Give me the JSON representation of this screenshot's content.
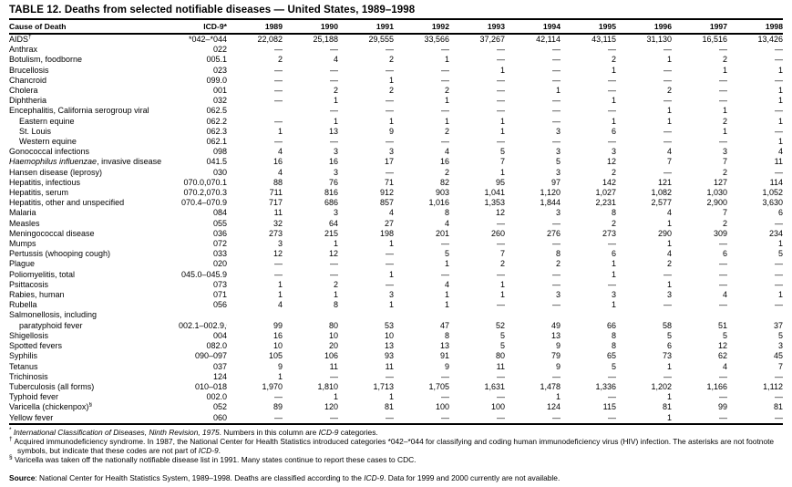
{
  "title": "TABLE 12. Deaths from selected notifiable diseases — United States, 1989–1998",
  "table": {
    "columns": [
      "Cause of Death",
      "ICD-9*",
      "1989",
      "1990",
      "1991",
      "1992",
      "1993",
      "1994",
      "1995",
      "1996",
      "1997",
      "1998"
    ],
    "rows": [
      {
        "label": "AIDS",
        "sup": "†",
        "icd": "*042–*044",
        "indent": false,
        "values": [
          "22,082",
          "25,188",
          "29,555",
          "33,566",
          "37,267",
          "42,114",
          "43,115",
          "31,130",
          "16,516",
          "13,426"
        ]
      },
      {
        "label": "Anthrax",
        "icd": "022",
        "indent": false,
        "values": [
          "—",
          "—",
          "—",
          "—",
          "—",
          "—",
          "—",
          "—",
          "—",
          "—"
        ]
      },
      {
        "label": "Botulism, foodborne",
        "icd": "005.1",
        "indent": false,
        "values": [
          "2",
          "4",
          "2",
          "1",
          "—",
          "—",
          "2",
          "1",
          "2",
          "—"
        ]
      },
      {
        "label": "Brucellosis",
        "icd": "023",
        "indent": false,
        "values": [
          "—",
          "—",
          "—",
          "—",
          "1",
          "—",
          "1",
          "—",
          "1",
          "1"
        ]
      },
      {
        "label": "Chancroid",
        "icd": "099.0",
        "indent": false,
        "values": [
          "—",
          "—",
          "1",
          "—",
          "—",
          "—",
          "—",
          "—",
          "—",
          "—"
        ]
      },
      {
        "label": "Cholera",
        "icd": "001",
        "indent": false,
        "values": [
          "—",
          "2",
          "2",
          "2",
          "—",
          "1",
          "—",
          "2",
          "—",
          "1"
        ]
      },
      {
        "label": "Diphtheria",
        "icd": "032",
        "indent": false,
        "values": [
          "—",
          "1",
          "—",
          "1",
          "—",
          "—",
          "1",
          "—",
          "—",
          "1"
        ]
      },
      {
        "label": "Encephalitis, California serogroup viral",
        "icd": "062.5",
        "indent": false,
        "values": [
          "",
          "—",
          "—",
          "—",
          "—",
          "—",
          "—",
          "1",
          "1",
          "—"
        ]
      },
      {
        "label": "Eastern equine",
        "icd": "062.2",
        "indent": true,
        "values": [
          "—",
          "1",
          "1",
          "1",
          "1",
          "—",
          "1",
          "1",
          "2",
          "1"
        ]
      },
      {
        "label": "St. Louis",
        "icd": "062.3",
        "indent": true,
        "values": [
          "1",
          "13",
          "9",
          "2",
          "1",
          "3",
          "6",
          "—",
          "1",
          "—"
        ]
      },
      {
        "label": "Western equine",
        "icd": "062.1",
        "indent": true,
        "values": [
          "—",
          "—",
          "—",
          "—",
          "—",
          "—",
          "—",
          "—",
          "—",
          "1"
        ]
      },
      {
        "label": "Gonococcal infections",
        "icd": "098",
        "indent": false,
        "values": [
          "4",
          "3",
          "3",
          "4",
          "5",
          "3",
          "3",
          "4",
          "3",
          "4"
        ]
      },
      {
        "label_italic": "Haemophilus influenzae",
        "label": ", invasive disease",
        "icd": "041.5",
        "indent": false,
        "values": [
          "16",
          "16",
          "17",
          "16",
          "7",
          "5",
          "12",
          "7",
          "7",
          "11"
        ]
      },
      {
        "label": "Hansen disease (leprosy)",
        "icd": "030",
        "indent": false,
        "values": [
          "4",
          "3",
          "—",
          "2",
          "1",
          "3",
          "2",
          "—",
          "2",
          "—"
        ]
      },
      {
        "label": "Hepatitis, infectious",
        "icd": "070.0,070.1",
        "indent": false,
        "values": [
          "88",
          "76",
          "71",
          "82",
          "95",
          "97",
          "142",
          "121",
          "127",
          "114"
        ]
      },
      {
        "label": "Hepatitis, serum",
        "icd": "070.2,070.3",
        "indent": false,
        "values": [
          "711",
          "816",
          "912",
          "903",
          "1,041",
          "1,120",
          "1,027",
          "1,082",
          "1,030",
          "1,052"
        ]
      },
      {
        "label": "Hepatitis, other and unspecified",
        "icd": "070.4–070.9",
        "indent": false,
        "values": [
          "717",
          "686",
          "857",
          "1,016",
          "1,353",
          "1,844",
          "2,231",
          "2,577",
          "2,900",
          "3,630"
        ]
      },
      {
        "label": "Malaria",
        "icd": "084",
        "indent": false,
        "values": [
          "11",
          "3",
          "4",
          "8",
          "12",
          "3",
          "8",
          "4",
          "7",
          "6"
        ]
      },
      {
        "label": "Measles",
        "icd": "055",
        "indent": false,
        "values": [
          "32",
          "64",
          "27",
          "4",
          "—",
          "—",
          "2",
          "1",
          "2",
          "—"
        ]
      },
      {
        "label": "Meningococcal disease",
        "icd": "036",
        "indent": false,
        "values": [
          "273",
          "215",
          "198",
          "201",
          "260",
          "276",
          "273",
          "290",
          "309",
          "234"
        ]
      },
      {
        "label": "Mumps",
        "icd": "072",
        "indent": false,
        "values": [
          "3",
          "1",
          "1",
          "—",
          "—",
          "—",
          "—",
          "1",
          "—",
          "1"
        ]
      },
      {
        "label": "Pertussis (whooping cough)",
        "icd": "033",
        "indent": false,
        "values": [
          "12",
          "12",
          "—",
          "5",
          "7",
          "8",
          "6",
          "4",
          "6",
          "5"
        ]
      },
      {
        "label": "Plague",
        "icd": "020",
        "indent": false,
        "values": [
          "—",
          "—",
          "—",
          "1",
          "2",
          "2",
          "1",
          "2",
          "—",
          "—"
        ]
      },
      {
        "label": "Poliomyelitis, total",
        "icd": "045.0–045.9",
        "indent": false,
        "values": [
          "—",
          "—",
          "1",
          "—",
          "—",
          "—",
          "1",
          "—",
          "—",
          "—"
        ]
      },
      {
        "label": "Psittacosis",
        "icd": "073",
        "indent": false,
        "values": [
          "1",
          "2",
          "—",
          "4",
          "1",
          "—",
          "—",
          "1",
          "—",
          "—"
        ]
      },
      {
        "label": "Rabies, human",
        "icd": "071",
        "indent": false,
        "values": [
          "1",
          "1",
          "3",
          "1",
          "1",
          "3",
          "3",
          "3",
          "4",
          "1"
        ]
      },
      {
        "label": "Rubella",
        "icd": "056",
        "indent": false,
        "values": [
          "4",
          "8",
          "1",
          "1",
          "—",
          "—",
          "1",
          "—",
          "—",
          "—"
        ]
      },
      {
        "label": "Salmonellosis, including",
        "icd": "",
        "indent": false,
        "values": [
          "",
          "",
          "",
          "",
          "",
          "",
          "",
          "",
          "",
          ""
        ]
      },
      {
        "label": "paratyphoid fever",
        "icd": "002.1–002.9,003",
        "indent": true,
        "values": [
          "99",
          "80",
          "53",
          "47",
          "52",
          "49",
          "66",
          "58",
          "51",
          "37"
        ]
      },
      {
        "label": "Shigellosis",
        "icd": "004",
        "indent": false,
        "values": [
          "16",
          "10",
          "10",
          "8",
          "5",
          "13",
          "8",
          "5",
          "5",
          "5"
        ]
      },
      {
        "label": "Spotted fevers",
        "icd": "082.0",
        "indent": false,
        "values": [
          "10",
          "20",
          "13",
          "13",
          "5",
          "9",
          "8",
          "6",
          "12",
          "3"
        ]
      },
      {
        "label": "Syphilis",
        "icd": "090–097",
        "indent": false,
        "values": [
          "105",
          "106",
          "93",
          "91",
          "80",
          "79",
          "65",
          "73",
          "62",
          "45"
        ]
      },
      {
        "label": "Tetanus",
        "icd": "037",
        "indent": false,
        "values": [
          "9",
          "11",
          "11",
          "9",
          "11",
          "9",
          "5",
          "1",
          "4",
          "7"
        ]
      },
      {
        "label": "Trichinosis",
        "icd": "124",
        "indent": false,
        "values": [
          "1",
          "—",
          "—",
          "—",
          "—",
          "—",
          "—",
          "—",
          "—",
          "—"
        ]
      },
      {
        "label": "Tuberculosis (all forms)",
        "icd": "010–018",
        "indent": false,
        "values": [
          "1,970",
          "1,810",
          "1,713",
          "1,705",
          "1,631",
          "1,478",
          "1,336",
          "1,202",
          "1,166",
          "1,112"
        ]
      },
      {
        "label": "Typhoid fever",
        "icd": "002.0",
        "indent": false,
        "values": [
          "—",
          "1",
          "1",
          "—",
          "—",
          "1",
          "—",
          "1",
          "—",
          "—"
        ]
      },
      {
        "label": "Varicella (chickenpox)",
        "sup": "§",
        "icd": "052",
        "indent": false,
        "values": [
          "89",
          "120",
          "81",
          "100",
          "100",
          "124",
          "115",
          "81",
          "99",
          "81"
        ]
      },
      {
        "label": "Yellow fever",
        "icd": "060",
        "indent": false,
        "values": [
          "—",
          "—",
          "—",
          "—",
          "—",
          "—",
          "—",
          "1",
          "—",
          "—"
        ]
      }
    ]
  },
  "footnotes": [
    {
      "segments": [
        {
          "t": "*",
          "sup": true
        },
        {
          "t": " "
        },
        {
          "t": "International Classification of Diseases, Ninth Revision, 1975",
          "i": true
        },
        {
          "t": ". Numbers in this column are "
        },
        {
          "t": "ICD-9",
          "i": true
        },
        {
          "t": " categories."
        }
      ]
    },
    {
      "segments": [
        {
          "t": "†",
          "sup": true
        },
        {
          "t": " Acquired immunodeficiency syndrome.  In 1987, the National Center for Health Statistics introduced categories *042–*044 for classifying and coding human immunodeficiency virus (HIV) infection. The asterisks are not footnote symbols, but indicate that these codes are not part of "
        },
        {
          "t": "ICD-9",
          "i": true
        },
        {
          "t": "."
        }
      ]
    },
    {
      "segments": [
        {
          "t": "§",
          "sup": true
        },
        {
          "t": " Varicella was taken off the nationally notifiable disease list in 1991. Many states continue to report these cases to CDC."
        }
      ]
    }
  ],
  "source": {
    "segments": [
      {
        "t": "Source",
        "b": true
      },
      {
        "t": ": National Center for Health Statistics System, 1989–1998. Deaths are classified according to the "
      },
      {
        "t": "ICD-9",
        "i": true
      },
      {
        "t": ". Data for 1999 and 2000 currently are not available."
      }
    ]
  }
}
